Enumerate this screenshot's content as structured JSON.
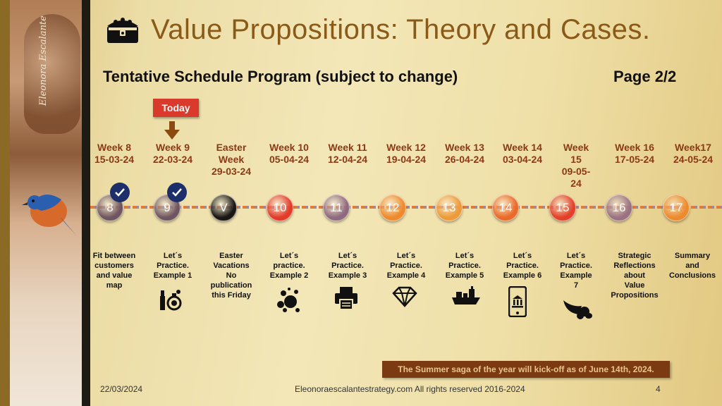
{
  "title": "Value Propositions: Theory and Cases.",
  "subtitle": "Tentative Schedule Program (subject to change)",
  "page_label": "Page 2/2",
  "today_label": "Today",
  "weeks": [
    {
      "label": "Week 8\n15-03-24",
      "node": "8",
      "color": "#6f5560",
      "done": true,
      "desc": "Fit between\ncustomers\nand value\nmap",
      "icon": ""
    },
    {
      "label": "Week 9\n22-03-24",
      "node": "9",
      "color": "#6f5560",
      "done": true,
      "desc": "Let´s\nPractice.\nExample 1",
      "icon": "lipstick-perfume-icon"
    },
    {
      "label": "Easter\nWeek\n29-03-24",
      "node": "V",
      "color": "#1a1614",
      "done": false,
      "desc": "Easter\nVacations\nNo\npublication\nthis Friday",
      "icon": ""
    },
    {
      "label": "Week 10\n05-04-24",
      "node": "10",
      "color": "#e23b2a",
      "done": false,
      "desc": "Let´s\npractice.\nExample 2",
      "icon": "bubbles-icon"
    },
    {
      "label": "Week 11\n12-04-24",
      "node": "11",
      "color": "#8f6a7e",
      "done": false,
      "desc": "Let´s\nPractice.\nExample 3",
      "icon": "printer-icon"
    },
    {
      "label": "Week 12\n19-04-24",
      "node": "12",
      "color": "#ee8a2e",
      "done": false,
      "desc": "Let´s\nPractice.\nExample 4",
      "icon": "diamond-icon"
    },
    {
      "label": "Week 13\n26-04-24",
      "node": "13",
      "color": "#ec9a3a",
      "done": false,
      "desc": "Let´s\nPractice.\nExample 5",
      "icon": "ship-icon"
    },
    {
      "label": "Week 14\n03-04-24",
      "node": "14",
      "color": "#ea6a2a",
      "done": false,
      "desc": "Let´s\nPractice.\nExample 6",
      "icon": "mobile-bank-icon"
    },
    {
      "label": "Week\n15\n09-05-\n24",
      "node": "15",
      "color": "#e2402a",
      "done": false,
      "desc": "Let´s\nPractice.\nExample\n7",
      "icon": "cornucopia-icon"
    },
    {
      "label": "Week 16\n17-05-24",
      "node": "16",
      "color": "#9a7282",
      "done": false,
      "desc": "Strategic\nReflections\nabout\nValue\nPropositions",
      "icon": ""
    },
    {
      "label": "Week17\n24-05-24",
      "node": "17",
      "color": "#ee8a2e",
      "done": false,
      "desc": "Summary\nand\nConclusions",
      "icon": ""
    }
  ],
  "banner": "The Summer saga of the year will kick-off as of June 14th, 2024.",
  "footer": {
    "date": "22/03/2024",
    "copyright": "Eleonoraescalantestrategy.com  All rights reserved 2016-2024",
    "slide_number": "4"
  },
  "signature": "Eleonora Escalante"
}
